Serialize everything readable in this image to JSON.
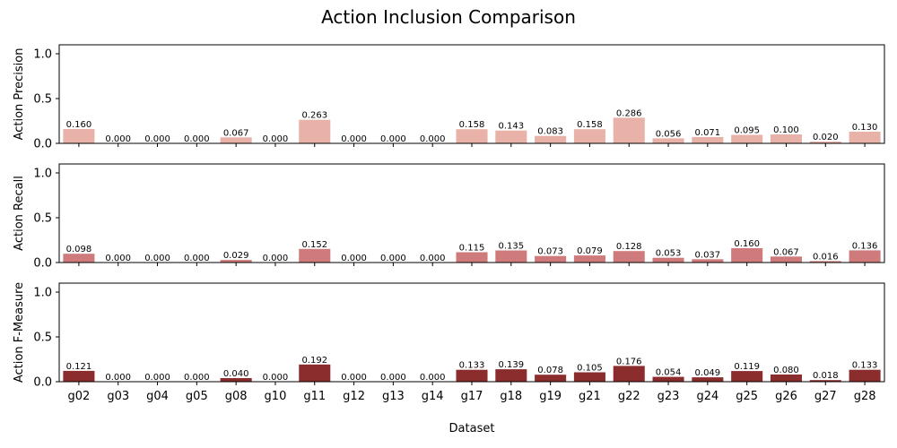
{
  "chart_data": {
    "type": "bar",
    "title": "Action Inclusion Comparison",
    "xlabel": "Dataset",
    "categories": [
      "g02",
      "g03",
      "g04",
      "g05",
      "g08",
      "g10",
      "g11",
      "g12",
      "g13",
      "g14",
      "g17",
      "g18",
      "g19",
      "g21",
      "g22",
      "g23",
      "g24",
      "g25",
      "g26",
      "g27",
      "g28"
    ],
    "ylim": [
      0,
      1.1
    ],
    "yticks": [
      "0.0",
      "0.5",
      "1.0"
    ],
    "yticks_values": [
      0,
      0.5,
      1.0
    ],
    "grid": false,
    "panels": [
      {
        "ylabel": "Action Precision",
        "color": "#e8b2a8",
        "values": [
          0.16,
          0.0,
          0.0,
          0.0,
          0.067,
          0.0,
          0.263,
          0.0,
          0.0,
          0.0,
          0.158,
          0.143,
          0.083,
          0.158,
          0.286,
          0.056,
          0.071,
          0.095,
          0.1,
          0.02,
          0.13
        ],
        "labels": [
          "0.160",
          "0.000",
          "0.000",
          "0.000",
          "0.067",
          "0.000",
          "0.263",
          "0.000",
          "0.000",
          "0.000",
          "0.158",
          "0.143",
          "0.083",
          "0.158",
          "0.286",
          "0.056",
          "0.071",
          "0.095",
          "0.100",
          "0.020",
          "0.130"
        ]
      },
      {
        "ylabel": "Action Recall",
        "color": "#cf7b7b",
        "values": [
          0.098,
          0.0,
          0.0,
          0.0,
          0.029,
          0.0,
          0.152,
          0.0,
          0.0,
          0.0,
          0.115,
          0.135,
          0.073,
          0.079,
          0.128,
          0.053,
          0.037,
          0.16,
          0.067,
          0.016,
          0.136
        ],
        "labels": [
          "0.098",
          "0.000",
          "0.000",
          "0.000",
          "0.029",
          "0.000",
          "0.152",
          "0.000",
          "0.000",
          "0.000",
          "0.115",
          "0.135",
          "0.073",
          "0.079",
          "0.128",
          "0.053",
          "0.037",
          "0.160",
          "0.067",
          "0.016",
          "0.136"
        ]
      },
      {
        "ylabel": "Action F-Measure",
        "color": "#8c2d2d",
        "values": [
          0.121,
          0.0,
          0.0,
          0.0,
          0.04,
          0.0,
          0.192,
          0.0,
          0.0,
          0.0,
          0.133,
          0.139,
          0.078,
          0.105,
          0.176,
          0.054,
          0.049,
          0.119,
          0.08,
          0.018,
          0.133
        ],
        "labels": [
          "0.121",
          "0.000",
          "0.000",
          "0.000",
          "0.040",
          "0.000",
          "0.192",
          "0.000",
          "0.000",
          "0.000",
          "0.133",
          "0.139",
          "0.078",
          "0.105",
          "0.176",
          "0.054",
          "0.049",
          "0.119",
          "0.080",
          "0.018",
          "0.133"
        ]
      }
    ]
  }
}
